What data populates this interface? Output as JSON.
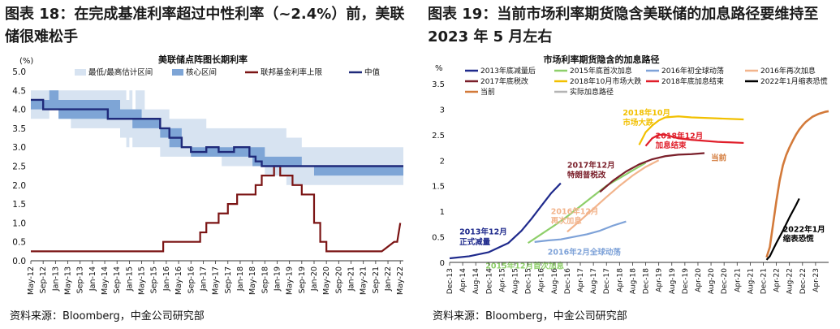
{
  "charts": [
    {
      "figure_title": "图表 18：在完成基准利率超过中性利率（~2.4%）前，美联储很难松手",
      "source": "资料来源：Bloomberg，中金公司研究部"
    },
    {
      "figure_title": "图表 19：当前市场利率期货隐含美联储的加息路径要维持至 2023 年 5 月左右",
      "source": "资料来源：Bloomberg，中金公司研究部"
    }
  ],
  "chart_data": [
    {
      "type": "line",
      "title": "美联储点阵图长期利率",
      "ylabel": "(%)",
      "xlabel": "",
      "ylim": [
        0,
        5
      ],
      "yticks": [
        0.0,
        0.5,
        1.0,
        1.5,
        2.0,
        2.5,
        3.0,
        3.5,
        4.0,
        4.5,
        5.0
      ],
      "ytick_labels": [
        "0.0",
        "0.5",
        "1.0",
        "1.5",
        "2.0",
        "2.5",
        "3.0",
        "3.5",
        "4.0",
        "4.5",
        "5.0"
      ],
      "xticks": [
        "May-12",
        "Sep-12",
        "Jan-13",
        "May-13",
        "Sep-13",
        "Jan-14",
        "May-14",
        "Sep-14",
        "Jan-15",
        "May-15",
        "Sep-15",
        "Jan-16",
        "May-16",
        "Sep-16",
        "Jan-17",
        "May-17",
        "Sep-17",
        "Jan-18",
        "May-18",
        "Sep-18",
        "Jan-19",
        "May-19",
        "Sep-19",
        "Jan-20",
        "May-20",
        "Sep-20",
        "Jan-21",
        "May-21",
        "Sep-21",
        "Jan-22",
        "May-22"
      ],
      "x_start": "May-12",
      "x_unit": "months",
      "legend": [
        "最低/最高估计区间",
        "核心区间",
        "联邦基金利率上限",
        "中值"
      ],
      "legend_position": "top",
      "colors": {
        "range": "#d7e3f1",
        "core": "#7ea5d6",
        "ffr": "#7b1414",
        "median": "#1f2a7a"
      },
      "range_band": {
        "x": [
          0,
          6,
          9,
          13,
          14,
          18,
          25,
          29,
          31,
          32,
          33,
          34,
          36,
          37,
          42,
          45,
          49,
          52,
          57,
          62,
          63,
          65,
          68,
          72,
          73,
          76,
          83,
          88,
          99,
          108,
          110,
          118,
          121
        ],
        "low": [
          3.75,
          4.0,
          3.75,
          3.5,
          3.5,
          3.5,
          3.5,
          3.25,
          3.0,
          3.25,
          3.0,
          3.0,
          3.0,
          3.0,
          2.75,
          2.75,
          2.75,
          2.75,
          2.75,
          2.5,
          2.5,
          2.5,
          2.5,
          2.5,
          2.5,
          2.25,
          2.0,
          2.0,
          2.0,
          2.0,
          2.0,
          2.0,
          2.0
        ],
        "high": [
          4.5,
          4.5,
          4.5,
          4.5,
          4.5,
          4.5,
          4.5,
          4.5,
          4.25,
          4.5,
          4.0,
          4.5,
          4.5,
          4.0,
          4.0,
          3.75,
          3.75,
          3.75,
          3.5,
          3.5,
          3.5,
          3.5,
          3.5,
          3.5,
          3.5,
          3.5,
          3.25,
          3.0,
          3.0,
          3.0,
          3.0,
          3.0,
          3.0
        ]
      },
      "core_band": {
        "x": [
          0,
          6,
          9,
          13,
          16,
          20,
          29,
          33,
          36,
          42,
          45,
          49,
          52,
          57,
          60,
          66,
          72,
          76,
          83,
          88,
          92,
          99,
          108,
          121
        ],
        "low": [
          4.0,
          4.0,
          3.75,
          3.75,
          3.75,
          3.75,
          3.75,
          3.5,
          3.5,
          3.25,
          3.0,
          3.0,
          2.75,
          2.75,
          2.75,
          2.75,
          2.5,
          2.5,
          2.5,
          2.5,
          2.25,
          2.25,
          2.25,
          2.25
        ],
        "high": [
          4.25,
          4.5,
          4.25,
          4.25,
          4.25,
          4.25,
          4.0,
          4.0,
          3.75,
          3.5,
          3.5,
          3.0,
          3.0,
          3.0,
          3.0,
          3.0,
          3.0,
          2.75,
          2.75,
          2.5,
          2.5,
          2.5,
          2.5,
          2.5
        ]
      },
      "series": [
        {
          "name": "中值",
          "x": [
            0,
            4,
            4,
            9,
            9,
            16,
            16,
            25,
            25,
            36,
            36,
            42,
            42,
            45,
            45,
            49,
            49,
            52,
            52,
            57,
            57,
            61,
            61,
            66,
            66,
            71,
            71,
            73,
            73,
            75,
            75,
            121
          ],
          "values": [
            4.25,
            4.25,
            4.0,
            4.0,
            4.0,
            4.0,
            4.0,
            4.0,
            3.75,
            3.75,
            3.75,
            3.75,
            3.5,
            3.5,
            3.25,
            3.25,
            3.0,
            3.0,
            2.875,
            2.875,
            3.0,
            3.0,
            2.875,
            2.875,
            3.0,
            3.0,
            2.75,
            2.75,
            2.625,
            2.625,
            2.5,
            2.5
          ],
          "style": "step"
        },
        {
          "name": "联邦基金利率上限",
          "x": [
            0,
            43,
            43,
            55,
            55,
            57,
            57,
            61,
            61,
            64,
            64,
            67,
            67,
            73,
            73,
            75,
            75,
            79,
            79,
            81,
            81,
            85,
            85,
            88,
            88,
            92,
            92,
            94,
            94,
            96,
            96,
            99,
            99,
            114,
            114,
            118,
            119,
            120
          ],
          "values": [
            0.25,
            0.25,
            0.5,
            0.5,
            0.75,
            0.75,
            1.0,
            1.0,
            1.25,
            1.25,
            1.5,
            1.5,
            1.75,
            1.75,
            2.0,
            2.0,
            2.25,
            2.25,
            2.5,
            2.5,
            2.25,
            2.25,
            2.0,
            2.0,
            1.75,
            1.75,
            1.0,
            1.0,
            0.5,
            0.5,
            0.25,
            0.25,
            0.25,
            0.25,
            0.25,
            0.5,
            0.5,
            1.0
          ],
          "style": "step"
        }
      ]
    },
    {
      "type": "line",
      "title": "市场利率期货隐含的加息路径",
      "ylabel": "%",
      "xlabel": "",
      "ylim": [
        0,
        3.5
      ],
      "yticks": [
        0,
        0.5,
        1,
        1.5,
        2,
        2.5,
        3,
        3.5
      ],
      "ytick_labels": [
        "0",
        "0.5",
        "1",
        "1.5",
        "2",
        "2.5",
        "3",
        "3.5"
      ],
      "xticks": [
        "Dec-13",
        "Apr-14",
        "Aug-14",
        "Dec-14",
        "Apr-15",
        "Aug-15",
        "Dec-15",
        "Apr-16",
        "Aug-16",
        "Dec-16",
        "Apr-17",
        "Aug-17",
        "Dec-17",
        "Apr-18",
        "Aug-18",
        "Dec-18",
        "Apr-19",
        "Aug-19",
        "Dec-19",
        "Apr-20",
        "Aug-20",
        "Dec-20",
        "Apr-21",
        "Aug-21",
        "Dec-21",
        "Apr-22",
        "Aug-22",
        "Dec-22",
        "Apr-23"
      ],
      "x_start": "Dec-13",
      "x_unit": "months",
      "legend_position": "top",
      "annotations": [
        {
          "text": "2013年12月",
          "x": 3,
          "y": 0.55
        },
        {
          "text": "正式减量",
          "x": 3,
          "y": 0.35
        },
        {
          "text": "2015年12月首次加息",
          "x": 11,
          "y": -0.12
        },
        {
          "text": "2016年2月全球动荡",
          "x": 30,
          "y": 0.15
        },
        {
          "text": "2016年12月",
          "x": 31,
          "y": 0.95
        },
        {
          "text": "再次加息",
          "x": 31,
          "y": 0.76
        },
        {
          "text": "2017年12月",
          "x": 36,
          "y": 1.85
        },
        {
          "text": "特朗普税改",
          "x": 36,
          "y": 1.66
        },
        {
          "text": "2018年10月",
          "x": 53,
          "y": 2.88
        },
        {
          "text": "市场大跌",
          "x": 53,
          "y": 2.69
        },
        {
          "text": "2018年12月",
          "x": 63,
          "y": 2.43
        },
        {
          "text": "加息结束",
          "x": 63,
          "y": 2.24
        },
        {
          "text": "当前",
          "x": 80,
          "y": 2.0
        },
        {
          "text": "2022年1月",
          "x": 102,
          "y": 0.6
        },
        {
          "text": "缩表恐慌",
          "x": 102,
          "y": 0.41
        }
      ],
      "series": [
        {
          "name": "2013年底减量后",
          "color": "#1f2a8c",
          "x": [
            0,
            6,
            12,
            18,
            22,
            25,
            28,
            31,
            34
          ],
          "values": [
            0.08,
            0.12,
            0.2,
            0.38,
            0.62,
            0.85,
            1.1,
            1.35,
            1.55
          ]
        },
        {
          "name": "2015年底首次加息",
          "color": "#8ecf6a",
          "x": [
            24,
            28,
            32,
            36,
            40,
            44,
            48,
            52,
            56,
            60
          ],
          "values": [
            0.38,
            0.55,
            0.72,
            0.9,
            1.1,
            1.3,
            1.5,
            1.65,
            1.8,
            1.95
          ]
        },
        {
          "name": "2016年初全球动荡",
          "color": "#7ea2d8",
          "x": [
            26,
            30,
            34,
            38,
            42,
            46,
            50,
            54
          ],
          "values": [
            0.4,
            0.43,
            0.45,
            0.5,
            0.55,
            0.62,
            0.72,
            0.8
          ]
        },
        {
          "name": "2016年再次加息",
          "color": "#f2b48c",
          "x": [
            36,
            40,
            44,
            48,
            52,
            56,
            60,
            64
          ],
          "values": [
            0.6,
            0.82,
            1.05,
            1.28,
            1.5,
            1.7,
            1.87,
            2.0
          ]
        },
        {
          "name": "2017年底税改",
          "color": "#7a1f2a",
          "x": [
            46,
            50,
            54,
            58,
            62,
            66,
            70,
            74,
            78
          ],
          "values": [
            1.38,
            1.6,
            1.78,
            1.92,
            2.02,
            2.08,
            2.11,
            2.12,
            2.14
          ]
        },
        {
          "name": "2018年10月市场大跌",
          "color": "#f2c000",
          "x": [
            58,
            60,
            62,
            64,
            66,
            70,
            74,
            78,
            82,
            86,
            90
          ],
          "values": [
            2.3,
            2.55,
            2.68,
            2.78,
            2.84,
            2.86,
            2.84,
            2.83,
            2.82,
            2.81,
            2.8
          ]
        },
        {
          "name": "2018年底加息结束",
          "color": "#e01e2a",
          "x": [
            60,
            62,
            64,
            66,
            70,
            74,
            78,
            82,
            86,
            90
          ],
          "values": [
            2.28,
            2.43,
            2.5,
            2.5,
            2.43,
            2.4,
            2.38,
            2.36,
            2.35,
            2.34
          ]
        },
        {
          "name": "2022年1月缩表恐慌",
          "color": "#000000",
          "x": [
            97,
            98,
            99,
            100,
            101,
            102,
            103,
            104,
            105,
            106,
            107
          ],
          "values": [
            0.05,
            0.12,
            0.25,
            0.38,
            0.5,
            0.62,
            0.75,
            0.88,
            1.0,
            1.12,
            1.25
          ]
        },
        {
          "name": "当前",
          "color": "#d37a3a",
          "x": [
            97,
            98,
            99,
            100,
            101,
            102,
            103,
            104,
            105,
            106,
            107,
            108,
            109,
            110,
            111,
            112,
            113,
            114,
            115,
            116
          ],
          "values": [
            0.1,
            0.3,
            0.75,
            1.2,
            1.6,
            1.9,
            2.1,
            2.25,
            2.38,
            2.5,
            2.6,
            2.68,
            2.75,
            2.8,
            2.85,
            2.88,
            2.91,
            2.93,
            2.95,
            2.96
          ]
        },
        {
          "name": "实际加息路径",
          "color": "#b4b4b4",
          "x": [
            0,
            24,
            24,
            36,
            36,
            39,
            39,
            42,
            42,
            45,
            45,
            48,
            48,
            51,
            51,
            54,
            54,
            57,
            57,
            60,
            60,
            66,
            66,
            68,
            68,
            70,
            70,
            75,
            75,
            97,
            97,
            99,
            99,
            100,
            100
          ],
          "values": [
            0.25,
            0.25,
            0.5,
            0.5,
            0.75,
            0.75,
            1.0,
            1.0,
            1.25,
            1.25,
            1.5,
            1.5,
            1.75,
            1.75,
            2.0,
            2.0,
            2.25,
            2.25,
            2.5,
            2.5,
            2.5,
            2.5,
            2.25,
            2.25,
            2.0,
            2.0,
            1.75,
            1.75,
            0.25,
            0.25,
            0.5,
            0.5,
            1.0,
            1.0,
            1.0
          ]
        }
      ]
    }
  ]
}
